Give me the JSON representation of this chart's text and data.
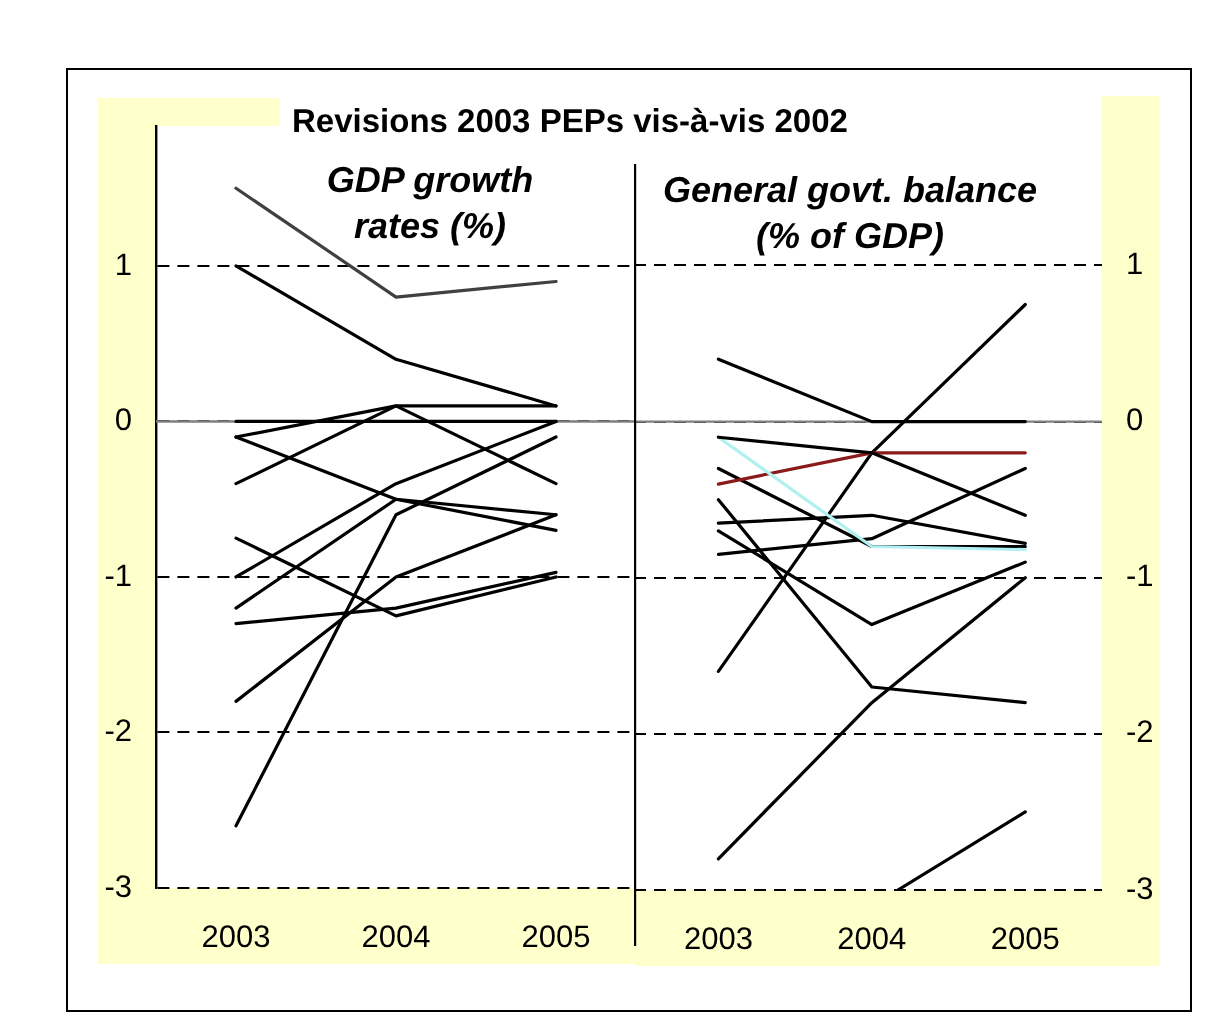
{
  "chart_data": [
    {
      "type": "line",
      "title": "Revisions 2003 PEPs vis-à-vis 2002",
      "subtitle": "GDP growth rates (%)",
      "x": [
        2003,
        2004,
        2005
      ],
      "xlim": [
        2002.5,
        2005.5
      ],
      "xticks": [
        2003,
        2004,
        2005
      ],
      "ylim": [
        -3,
        1.9
      ],
      "yticks": [
        -3,
        -2,
        -1,
        0,
        1
      ],
      "grid": "y",
      "legend": false,
      "marker": "none",
      "ref_lines": [
        {
          "axis": "y",
          "value": 0,
          "label": null
        }
      ],
      "series": [
        {
          "color": "#404040",
          "values": [
            1.5,
            0.8,
            0.9
          ]
        },
        {
          "color": "#000000",
          "values": [
            1.0,
            0.4,
            0.1
          ]
        },
        {
          "color": "#000000",
          "values": [
            0,
            0,
            0
          ]
        },
        {
          "color": "#000000",
          "values": [
            -0.1,
            0.1,
            0.1
          ]
        },
        {
          "color": "#000000",
          "values": [
            -0.4,
            0.1,
            -0.4
          ]
        },
        {
          "color": "#000000",
          "values": [
            -0.1,
            -0.5,
            -0.7
          ]
        },
        {
          "color": "#000000",
          "values": [
            -1.0,
            -0.4,
            0
          ]
        },
        {
          "color": "#000000",
          "values": [
            -1.2,
            -0.5,
            -0.6
          ]
        },
        {
          "color": "#000000",
          "values": [
            -2.6,
            -0.6,
            -0.1
          ]
        },
        {
          "color": "#000000",
          "values": [
            -1.8,
            -1.0,
            -0.6
          ]
        },
        {
          "color": "#000000",
          "values": [
            -0.75,
            -1.25,
            -1.0
          ]
        },
        {
          "color": "#000000",
          "values": [
            -1.3,
            -1.2,
            -0.97
          ]
        }
      ]
    },
    {
      "type": "line",
      "subtitle": "General govt. balance (% of GDP)",
      "x": [
        2003,
        2004,
        2005
      ],
      "xlim": [
        2002.45,
        2005.5
      ],
      "xticks": [
        2003,
        2004,
        2005
      ],
      "ylim": [
        -3,
        1.65
      ],
      "yticks": [
        -3,
        -2,
        -1,
        0,
        1
      ],
      "grid": "y",
      "legend": false,
      "marker": "none",
      "ref_lines": [
        {
          "axis": "y",
          "value": 0,
          "label": null,
          "color": "#808080"
        }
      ],
      "series": [
        {
          "color": "#000000",
          "values": [
            0.4,
            0,
            0
          ]
        },
        {
          "color": "#000000",
          "values": [
            -0.1,
            -0.2,
            -0.6
          ]
        },
        {
          "color": "#b0f0f0",
          "values": [
            -0.1,
            -0.8,
            -0.82
          ]
        },
        {
          "color": "#8b1a1a",
          "values": [
            -0.4,
            -0.2,
            -0.2
          ]
        },
        {
          "color": "#000000",
          "values": [
            -1.6,
            -0.2,
            0.75
          ]
        },
        {
          "color": "#000000",
          "values": [
            -2.8,
            -1.8,
            -1.0
          ]
        },
        {
          "color": "#000000",
          "values": [
            -0.5,
            -1.7,
            -1.8
          ]
        },
        {
          "color": "#000000",
          "values": [
            -0.7,
            -1.3,
            -0.9
          ]
        },
        {
          "color": "#000000",
          "values": [
            -0.65,
            -0.6,
            -0.78
          ]
        },
        {
          "color": "#000000",
          "values": [
            -0.85,
            -0.75,
            -0.3
          ]
        },
        {
          "color": "#000000",
          "values": [
            -0.3,
            -0.8,
            -0.8
          ]
        },
        {
          "color": "#000000",
          "x": [
            2004.17,
            2005
          ],
          "values": [
            -3,
            -2.5
          ]
        }
      ]
    }
  ]
}
